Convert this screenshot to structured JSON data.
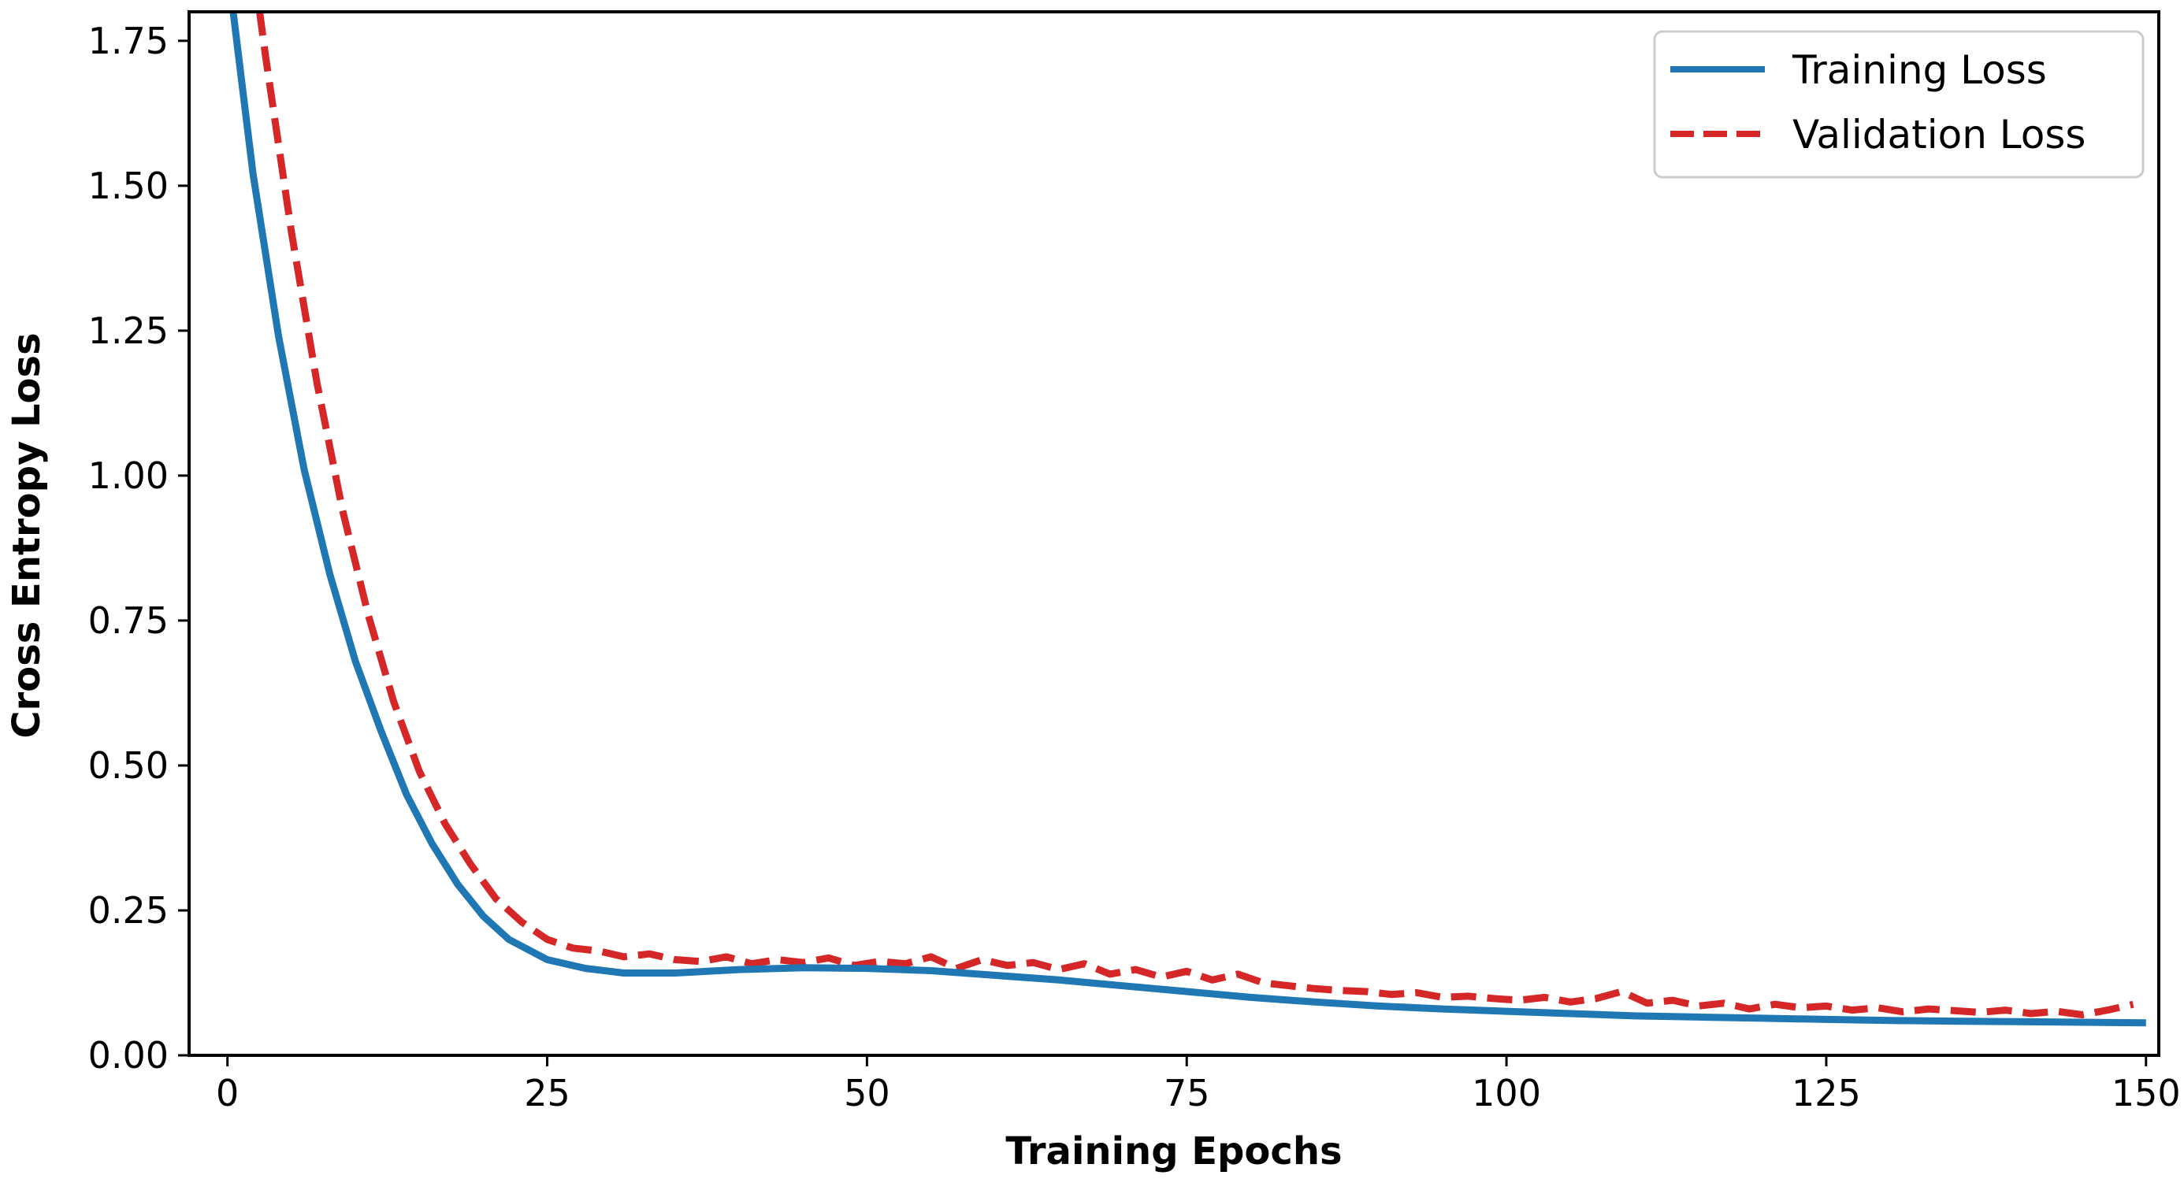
{
  "chart_data": {
    "type": "line",
    "title": "",
    "xlabel": "Training Epochs",
    "ylabel": "Cross Entropy Loss",
    "xlim": [
      -3,
      151
    ],
    "ylim": [
      0.0,
      1.8
    ],
    "x_ticks": [
      0,
      25,
      50,
      75,
      100,
      125,
      150
    ],
    "x_tick_labels": [
      "0",
      "25",
      "50",
      "75",
      "100",
      "125",
      "150"
    ],
    "y_ticks": [
      0.0,
      0.25,
      0.5,
      0.75,
      1.0,
      1.25,
      1.5,
      1.75
    ],
    "y_tick_labels": [
      "0.00",
      "0.25",
      "0.50",
      "0.75",
      "1.00",
      "1.25",
      "1.50",
      "1.75"
    ],
    "grid": false,
    "legend_position": "top-right",
    "series": [
      {
        "name": "Training Loss",
        "color": "#1f77b4",
        "style": "solid",
        "x": [
          0,
          2,
          4,
          6,
          8,
          10,
          12,
          14,
          16,
          18,
          20,
          22,
          25,
          28,
          31,
          35,
          40,
          45,
          50,
          55,
          60,
          65,
          70,
          75,
          80,
          85,
          90,
          95,
          100,
          105,
          110,
          115,
          120,
          125,
          130,
          135,
          140,
          145,
          150
        ],
        "values": [
          1.88,
          1.52,
          1.24,
          1.01,
          0.83,
          0.68,
          0.56,
          0.45,
          0.365,
          0.295,
          0.24,
          0.2,
          0.165,
          0.15,
          0.142,
          0.142,
          0.148,
          0.151,
          0.15,
          0.146,
          0.138,
          0.13,
          0.12,
          0.11,
          0.1,
          0.092,
          0.085,
          0.08,
          0.076,
          0.072,
          0.068,
          0.066,
          0.064,
          0.062,
          0.06,
          0.059,
          0.058,
          0.057,
          0.056
        ]
      },
      {
        "name": "Validation Loss",
        "color": "#d62728",
        "style": "dashed",
        "x": [
          1,
          3,
          5,
          7,
          9,
          11,
          13,
          15,
          17,
          19,
          21,
          23,
          25,
          27,
          29,
          31,
          33,
          35,
          37,
          39,
          41,
          43,
          45,
          47,
          49,
          51,
          53,
          55,
          57,
          59,
          61,
          63,
          65,
          67,
          69,
          71,
          73,
          75,
          77,
          79,
          81,
          83,
          85,
          87,
          89,
          91,
          93,
          95,
          97,
          99,
          101,
          103,
          105,
          107,
          109,
          111,
          113,
          115,
          117,
          119,
          121,
          123,
          125,
          127,
          129,
          131,
          133,
          135,
          137,
          139,
          141,
          143,
          145,
          147,
          149
        ],
        "values": [
          2.05,
          1.72,
          1.42,
          1.16,
          0.94,
          0.76,
          0.61,
          0.49,
          0.4,
          0.33,
          0.27,
          0.23,
          0.2,
          0.185,
          0.18,
          0.17,
          0.175,
          0.165,
          0.162,
          0.17,
          0.158,
          0.165,
          0.16,
          0.168,
          0.155,
          0.162,
          0.158,
          0.17,
          0.15,
          0.165,
          0.155,
          0.16,
          0.148,
          0.158,
          0.14,
          0.148,
          0.135,
          0.145,
          0.13,
          0.14,
          0.125,
          0.12,
          0.115,
          0.112,
          0.11,
          0.105,
          0.108,
          0.1,
          0.102,
          0.098,
          0.095,
          0.1,
          0.092,
          0.098,
          0.11,
          0.09,
          0.095,
          0.085,
          0.09,
          0.08,
          0.088,
          0.082,
          0.085,
          0.078,
          0.082,
          0.075,
          0.08,
          0.077,
          0.074,
          0.078,
          0.072,
          0.076,
          0.07,
          0.078,
          0.088
        ]
      }
    ]
  }
}
